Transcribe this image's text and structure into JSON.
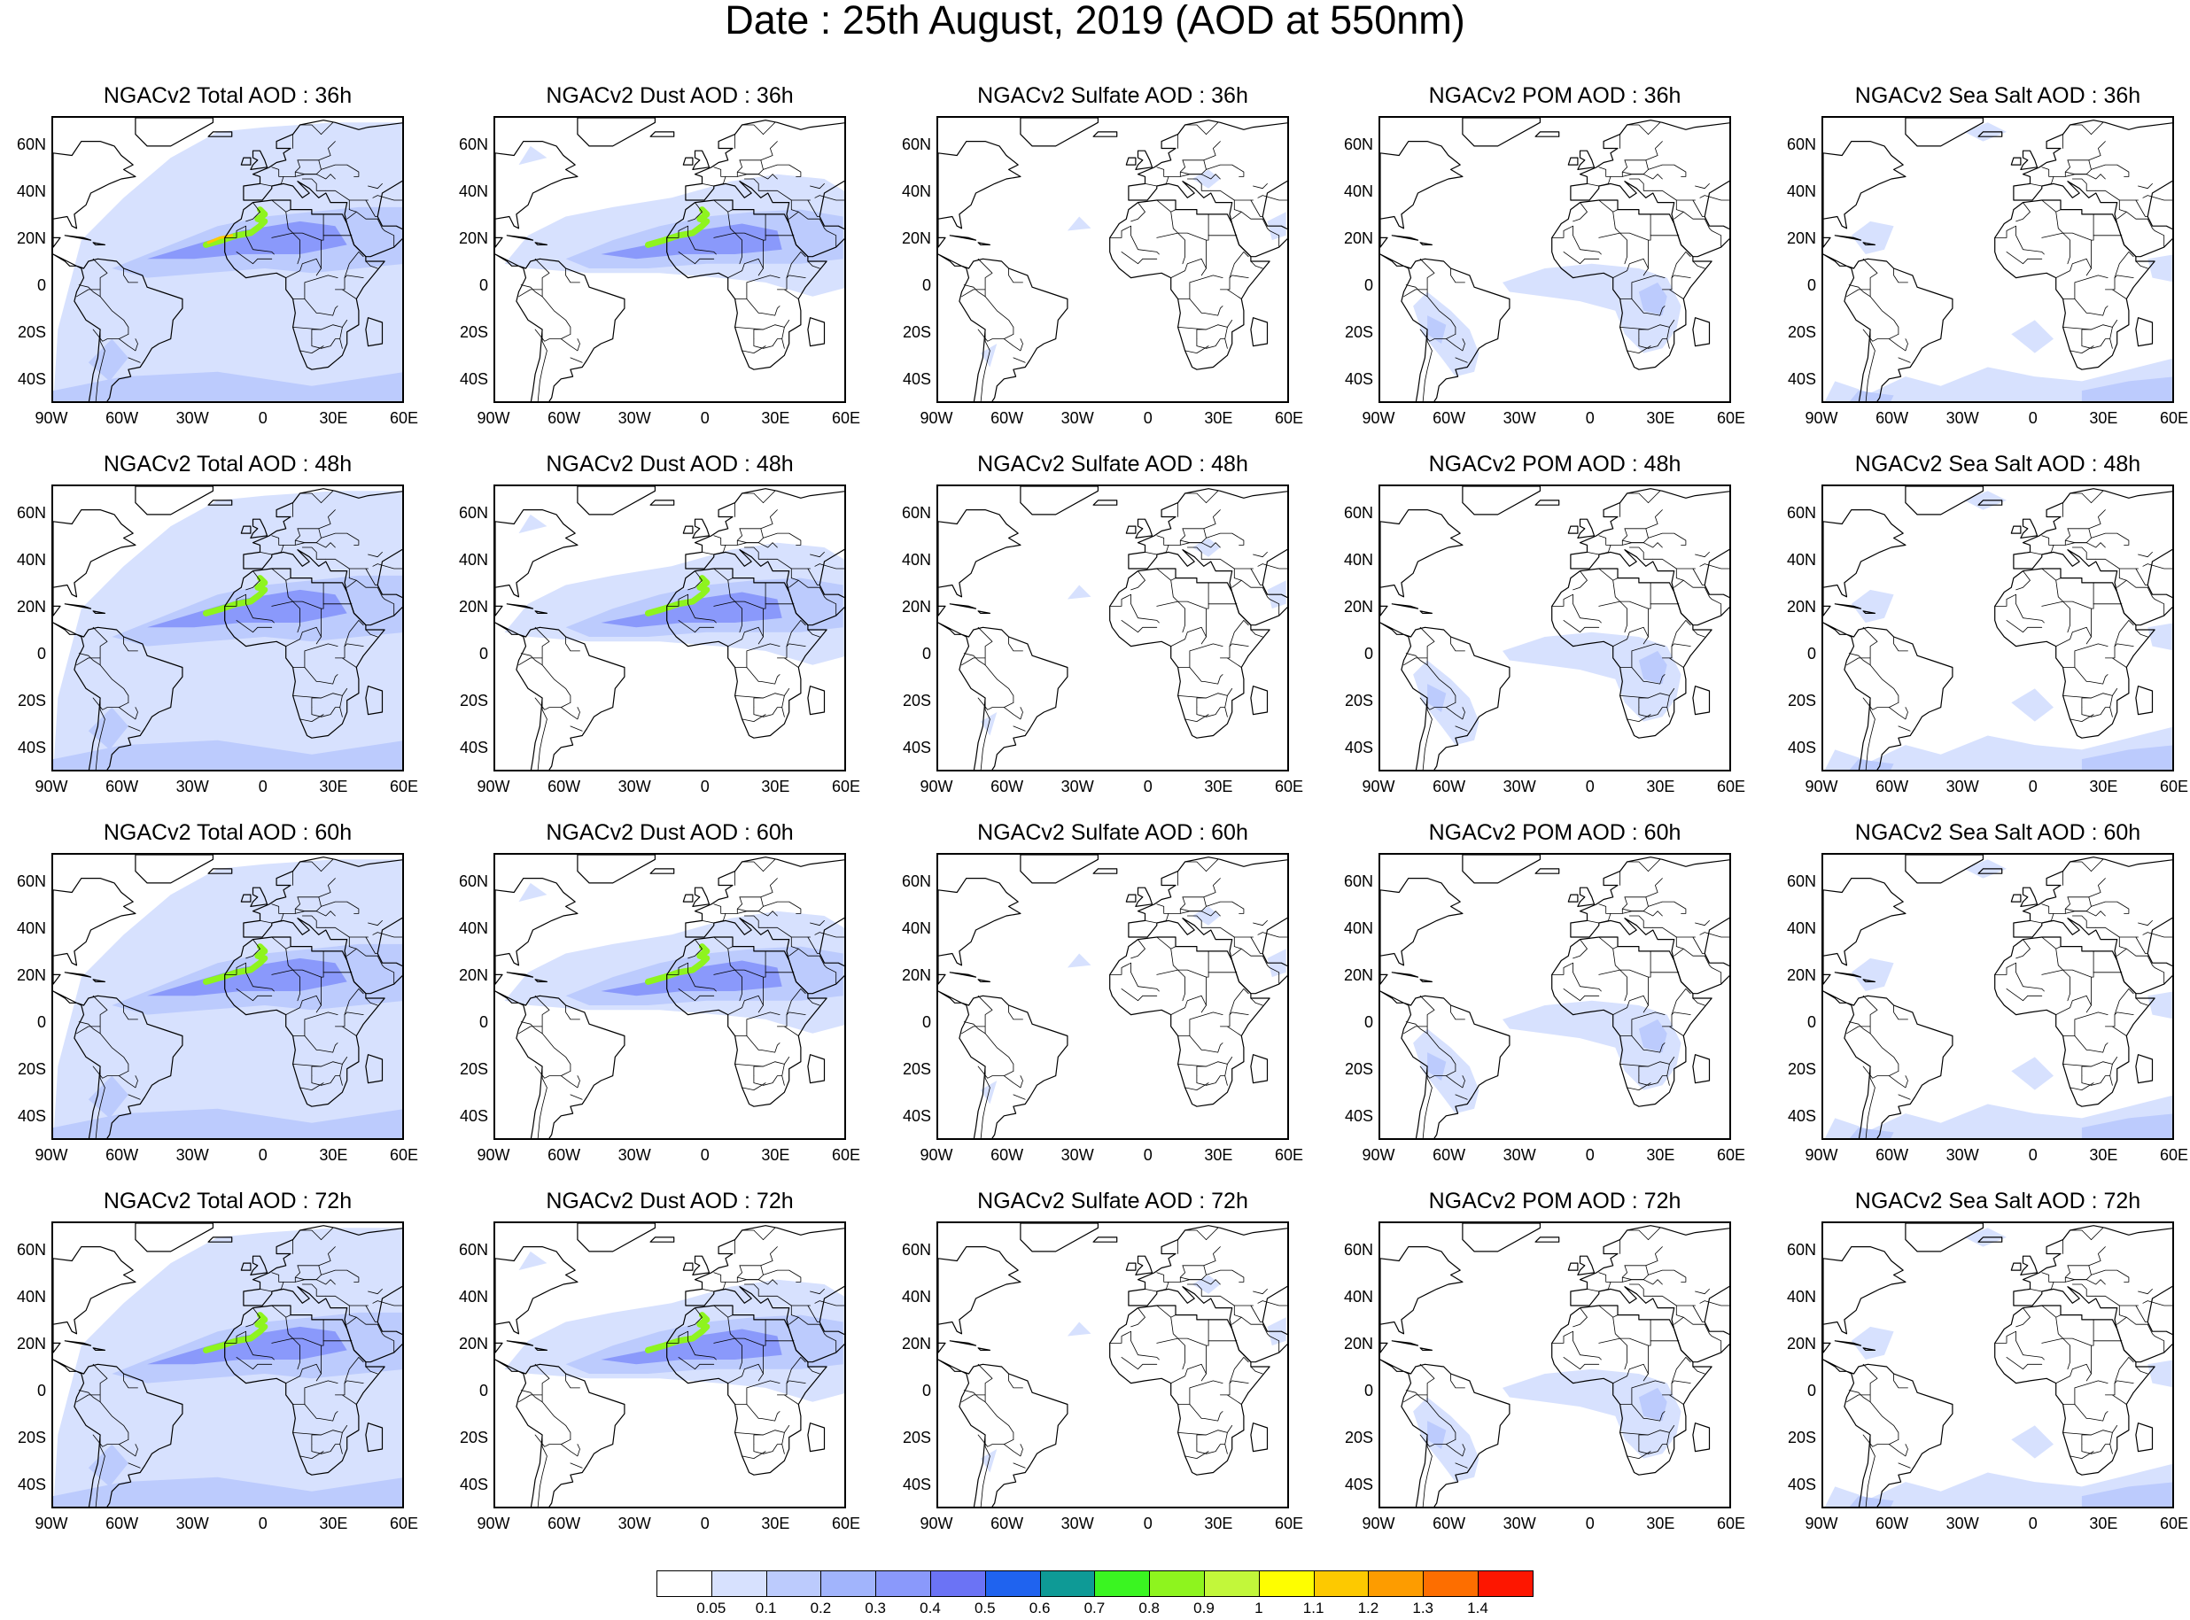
{
  "title": "Date : 25th August, 2019 (AOD at 550nm)",
  "columns": [
    {
      "key": "total",
      "name": "NGACv2 Total AOD"
    },
    {
      "key": "dust",
      "name": "NGACv2 Dust AOD"
    },
    {
      "key": "sulfate",
      "name": "NGACv2 Sulfate AOD"
    },
    {
      "key": "pom",
      "name": "NGACv2 POM AOD"
    },
    {
      "key": "seasalt",
      "name": "NGACv2 Sea Salt AOD"
    }
  ],
  "panels": [
    {
      "title": "NGACv2 Total AOD : 36h",
      "species": "total"
    },
    {
      "title": "NGACv2 Dust AOD : 36h",
      "species": "dust"
    },
    {
      "title": "NGACv2 Sulfate AOD : 36h",
      "species": "sulfate"
    },
    {
      "title": "NGACv2 POM AOD : 36h",
      "species": "pom"
    },
    {
      "title": "NGACv2 Sea Salt AOD : 36h",
      "species": "seasalt"
    },
    {
      "title": "NGACv2 Total AOD : 48h",
      "species": "total"
    },
    {
      "title": "NGACv2 Dust AOD : 48h",
      "species": "dust"
    },
    {
      "title": "NGACv2 Sulfate AOD : 48h",
      "species": "sulfate"
    },
    {
      "title": "NGACv2 POM AOD : 48h",
      "species": "pom"
    },
    {
      "title": "NGACv2 Sea Salt AOD : 48h",
      "species": "seasalt"
    },
    {
      "title": "NGACv2 Total AOD : 60h",
      "species": "total"
    },
    {
      "title": "NGACv2 Dust AOD : 60h",
      "species": "dust"
    },
    {
      "title": "NGACv2 Sulfate AOD : 60h",
      "species": "sulfate"
    },
    {
      "title": "NGACv2 POM AOD : 60h",
      "species": "pom"
    },
    {
      "title": "NGACv2 Sea Salt AOD : 60h",
      "species": "seasalt"
    },
    {
      "title": "NGACv2 Total AOD : 72h",
      "species": "total"
    },
    {
      "title": "NGACv2 Dust AOD : 72h",
      "species": "dust"
    },
    {
      "title": "NGACv2 Sulfate AOD : 72h",
      "species": "sulfate"
    },
    {
      "title": "NGACv2 POM AOD : 72h",
      "species": "pom"
    },
    {
      "title": "NGACv2 Sea Salt  AOD : 72h",
      "species": "seasalt"
    }
  ],
  "lat_ticks": [
    "60N",
    "40N",
    "20N",
    "0",
    "20S",
    "40S"
  ],
  "lon_ticks": [
    "90W",
    "60W",
    "30W",
    "0",
    "30E",
    "60E"
  ],
  "colorbar": {
    "labels": [
      "0.05",
      "0.1",
      "0.2",
      "0.3",
      "0.4",
      "0.5",
      "0.6",
      "0.7",
      "0.8",
      "0.9",
      "1",
      "1.1",
      "1.2",
      "1.3",
      "1.4"
    ],
    "colors": [
      "#ffffff",
      "#d7e1fe",
      "#bccbfd",
      "#a1b4fc",
      "#8a99fb",
      "#6b73f5",
      "#1f63ef",
      "#0e9a96",
      "#3af521",
      "#8ef41e",
      "#c2f73a",
      "#fefe00",
      "#fdc900",
      "#fd9c00",
      "#fd6e00",
      "#fd1600"
    ]
  },
  "colors": {
    "coast": "#000000",
    "panel_border": "#000000"
  }
}
